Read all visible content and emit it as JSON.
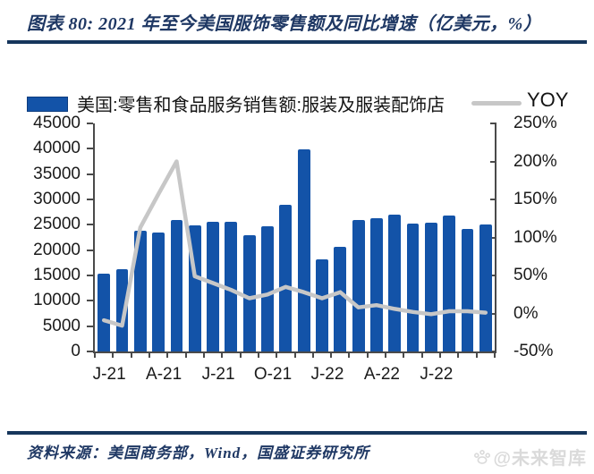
{
  "header": {
    "title": "图表 80: 2021 年至今美国服饰零售额及同比增速（亿美元，%）"
  },
  "legend": {
    "bar_label": "美国:零售和食品服务销售额:服装及服装配饰店",
    "line_label": "YOY"
  },
  "footer": {
    "source": "资料来源：美国商务部，Wind，国盛证券研究所",
    "watermark": "@未来智库"
  },
  "chart_data": {
    "type": "bar",
    "title": "2021 年至今美国服饰零售额及同比增速（亿美元，%）",
    "categories": [
      "2021-01",
      "2021-02",
      "2021-03",
      "2021-04",
      "2021-05",
      "2021-06",
      "2021-07",
      "2021-08",
      "2021-09",
      "2021-10",
      "2021-11",
      "2021-12",
      "2022-01",
      "2022-02",
      "2022-03",
      "2022-04",
      "2022-05",
      "2022-06",
      "2022-07",
      "2022-08",
      "2022-09",
      "2022-10"
    ],
    "series": [
      {
        "name": "美国:零售和食品服务销售额:服装及服装配饰店",
        "kind": "bar",
        "axis": "left",
        "color": "#1353a8",
        "values": [
          15300,
          16300,
          23900,
          23400,
          26000,
          24800,
          25600,
          25600,
          22900,
          24700,
          28900,
          39900,
          18200,
          20600,
          25900,
          26300,
          27000,
          25300,
          25400,
          26800,
          24200,
          25100
        ]
      },
      {
        "name": "YOY",
        "kind": "line",
        "axis": "right",
        "color": "#c7c7c7",
        "values": [
          -9,
          -16,
          113,
          157,
          200,
          49,
          40,
          31,
          20,
          25,
          35,
          28,
          20,
          28,
          8,
          11,
          6,
          2,
          -1,
          3,
          3,
          1
        ]
      }
    ],
    "left_axis": {
      "min": 0,
      "max": 45000,
      "step": 5000,
      "tick_labels": [
        "45000",
        "40000",
        "35000",
        "30000",
        "25000",
        "20000",
        "15000",
        "10000",
        "5000",
        "0"
      ]
    },
    "right_axis": {
      "min": -50,
      "max": 250,
      "step": 50,
      "suffix": "%",
      "tick_labels": [
        "250%",
        "200%",
        "150%",
        "100%",
        "50%",
        "0%",
        "-50%"
      ]
    },
    "x_tick_labels": [
      "J-21",
      "A-21",
      "J-21",
      "O-21",
      "J-22",
      "A-22",
      "J-22"
    ],
    "x_tick_every": 3,
    "grid": false,
    "legend_position": "top"
  }
}
